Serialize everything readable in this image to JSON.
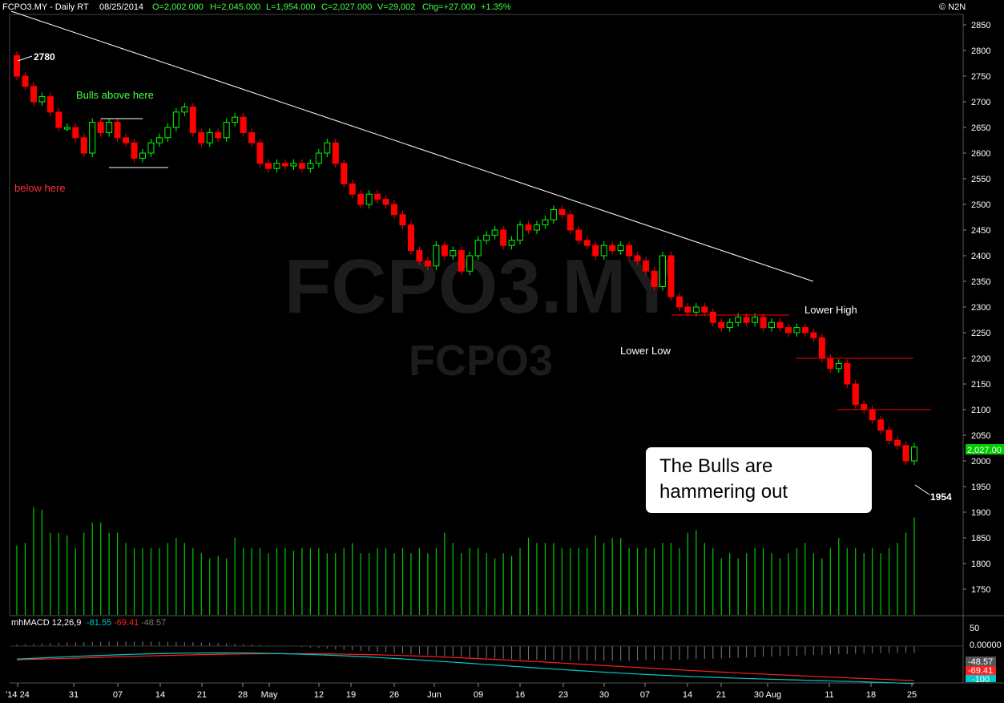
{
  "header": {
    "symbol": "FCPO3.MY - Daily RT",
    "date": "08/25/2014",
    "open": "O=2,002.000",
    "high": "H=2,045.000",
    "low": "L=1,954.000",
    "close": "C=2,027.000",
    "volume": "V=29,002",
    "change": "Chg=+27.000",
    "change_pct": "+1.35%",
    "copyright": "© N2N"
  },
  "watermark": {
    "main": "FCPO3.MY",
    "sub": "FCPO3"
  },
  "annotations": {
    "high_label": "2780",
    "low_label": "1954",
    "bulls_above": "Bulls above here",
    "below_here": "below here",
    "lower_high": "Lower High",
    "lower_low": "Lower Low",
    "callout_line1": "The Bulls are",
    "callout_line2": "hammering out"
  },
  "price_badge": "2,027.00",
  "macd": {
    "label": "mhMACD 12,26,9",
    "macd_value": "-81.55",
    "signal_value": "-69.41",
    "hist_value": "-48.57",
    "axis_ticks": [
      "50",
      "0.00000",
      "-48.57",
      "-69.41",
      "-100"
    ]
  },
  "colors": {
    "up": "#00ff00",
    "down": "#ff0000",
    "macd": "#00c8c8",
    "signal": "#ff2020",
    "hist": "#7a7a7a",
    "volume": "#00cc00"
  },
  "chart_data": {
    "type": "candlestick",
    "xlabel": "",
    "ylabel": "",
    "ylim": [
      1700,
      2870
    ],
    "y_ticks": [
      2850,
      2800,
      2750,
      2700,
      2650,
      2600,
      2550,
      2500,
      2450,
      2400,
      2350,
      2300,
      2250,
      2200,
      2150,
      2100,
      2050,
      2000,
      1950,
      1900,
      1850,
      1800,
      1750
    ],
    "x_ticks": [
      "'14 24",
      "31",
      "07",
      "14",
      "21",
      "28",
      "May",
      "12",
      "19",
      "26",
      "Jun",
      "09",
      "16",
      "23",
      "30",
      "07",
      "14",
      "21",
      "30 Aug",
      "11",
      "18",
      "25"
    ],
    "candles_close": [
      2750,
      2730,
      2700,
      2710,
      2680,
      2650,
      2650,
      2630,
      2600,
      2660,
      2640,
      2660,
      2630,
      2620,
      2590,
      2600,
      2620,
      2630,
      2650,
      2680,
      2690,
      2640,
      2620,
      2640,
      2630,
      2660,
      2670,
      2640,
      2620,
      2580,
      2570,
      2580,
      2575,
      2580,
      2570,
      2580,
      2600,
      2620,
      2580,
      2540,
      2520,
      2500,
      2520,
      2510,
      2500,
      2480,
      2460,
      2410,
      2390,
      2380,
      2420,
      2400,
      2410,
      2370,
      2400,
      2430,
      2440,
      2450,
      2420,
      2430,
      2460,
      2450,
      2460,
      2470,
      2490,
      2480,
      2450,
      2430,
      2420,
      2400,
      2420,
      2410,
      2420,
      2400,
      2390,
      2370,
      2340,
      2400,
      2320,
      2300,
      2290,
      2300,
      2290,
      2270,
      2260,
      2270,
      2280,
      2270,
      2280,
      2260,
      2270,
      2260,
      2250,
      2260,
      2250,
      2240,
      2200,
      2180,
      2190,
      2150,
      2110,
      2100,
      2080,
      2060,
      2040,
      2030,
      2000,
      2027
    ],
    "volume": [
      1835,
      1840,
      1910,
      1905,
      1860,
      1860,
      1855,
      1830,
      1860,
      1880,
      1880,
      1860,
      1860,
      1840,
      1830,
      1830,
      1830,
      1830,
      1840,
      1850,
      1840,
      1830,
      1820,
      1810,
      1815,
      1810,
      1850,
      1830,
      1830,
      1830,
      1820,
      1830,
      1830,
      1825,
      1830,
      1830,
      1830,
      1820,
      1820,
      1830,
      1840,
      1820,
      1820,
      1830,
      1830,
      1820,
      1830,
      1820,
      1830,
      1820,
      1830,
      1860,
      1840,
      1820,
      1830,
      1830,
      1820,
      1810,
      1820,
      1815,
      1830,
      1850,
      1840,
      1840,
      1840,
      1830,
      1830,
      1830,
      1830,
      1855,
      1840,
      1850,
      1850,
      1830,
      1830,
      1830,
      1830,
      1840,
      1840,
      1830,
      1860,
      1865,
      1840,
      1830,
      1810,
      1820,
      1810,
      1820,
      1830,
      1830,
      1820,
      1810,
      1820,
      1830,
      1840,
      1820,
      1810,
      1830,
      1850,
      1830,
      1830,
      1820,
      1830,
      1820,
      1830,
      1840,
      1860,
      1890
    ]
  }
}
